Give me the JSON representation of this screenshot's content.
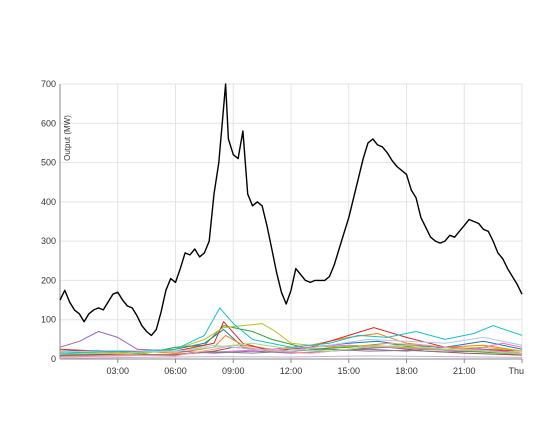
{
  "chart_data": {
    "type": "line",
    "ylabel": "Output (MW)",
    "xlabel": "",
    "ylim": [
      0,
      700
    ],
    "xlim": [
      0,
      24
    ],
    "yticks": [
      0,
      100,
      200,
      300,
      400,
      500,
      600,
      700
    ],
    "xticks": [
      {
        "x": 3,
        "label": "03:00"
      },
      {
        "x": 6,
        "label": "06:00"
      },
      {
        "x": 9,
        "label": "09:00"
      },
      {
        "x": 12,
        "label": "12:00"
      },
      {
        "x": 15,
        "label": "15:00"
      },
      {
        "x": 18,
        "label": "18:00"
      },
      {
        "x": 21,
        "label": "21:00"
      },
      {
        "x": 24,
        "label": "Thu"
      }
    ],
    "grid": true,
    "legend": "none",
    "series": [
      {
        "color": "#000000",
        "points": [
          [
            0,
            150
          ],
          [
            0.25,
            175
          ],
          [
            0.5,
            145
          ],
          [
            0.75,
            125
          ],
          [
            1.0,
            115
          ],
          [
            1.25,
            95
          ],
          [
            1.5,
            115
          ],
          [
            1.75,
            125
          ],
          [
            2.0,
            130
          ],
          [
            2.25,
            125
          ],
          [
            2.5,
            145
          ],
          [
            2.75,
            165
          ],
          [
            3.0,
            170
          ],
          [
            3.25,
            150
          ],
          [
            3.5,
            135
          ],
          [
            3.75,
            130
          ],
          [
            4.0,
            110
          ],
          [
            4.25,
            85
          ],
          [
            4.5,
            70
          ],
          [
            4.75,
            60
          ],
          [
            5.0,
            75
          ],
          [
            5.25,
            120
          ],
          [
            5.5,
            175
          ],
          [
            5.75,
            205
          ],
          [
            6.0,
            195
          ],
          [
            6.25,
            230
          ],
          [
            6.5,
            270
          ],
          [
            6.75,
            265
          ],
          [
            7.0,
            280
          ],
          [
            7.25,
            260
          ],
          [
            7.5,
            270
          ],
          [
            7.75,
            300
          ],
          [
            8.0,
            420
          ],
          [
            8.25,
            500
          ],
          [
            8.5,
            640
          ],
          [
            8.6,
            700
          ],
          [
            8.75,
            560
          ],
          [
            9.0,
            520
          ],
          [
            9.25,
            510
          ],
          [
            9.5,
            580
          ],
          [
            9.75,
            420
          ],
          [
            10.0,
            390
          ],
          [
            10.25,
            400
          ],
          [
            10.5,
            390
          ],
          [
            10.75,
            340
          ],
          [
            11.0,
            280
          ],
          [
            11.25,
            220
          ],
          [
            11.5,
            170
          ],
          [
            11.75,
            140
          ],
          [
            12.0,
            175
          ],
          [
            12.25,
            230
          ],
          [
            12.5,
            215
          ],
          [
            12.75,
            200
          ],
          [
            13.0,
            195
          ],
          [
            13.25,
            200
          ],
          [
            13.5,
            200
          ],
          [
            13.75,
            200
          ],
          [
            14.0,
            210
          ],
          [
            14.25,
            240
          ],
          [
            14.5,
            280
          ],
          [
            14.75,
            320
          ],
          [
            15.0,
            360
          ],
          [
            15.25,
            410
          ],
          [
            15.5,
            460
          ],
          [
            15.75,
            510
          ],
          [
            16.0,
            550
          ],
          [
            16.25,
            560
          ],
          [
            16.5,
            545
          ],
          [
            16.75,
            540
          ],
          [
            17.0,
            525
          ],
          [
            17.25,
            505
          ],
          [
            17.5,
            490
          ],
          [
            17.75,
            480
          ],
          [
            18.0,
            470
          ],
          [
            18.25,
            430
          ],
          [
            18.5,
            410
          ],
          [
            18.75,
            360
          ],
          [
            19.0,
            335
          ],
          [
            19.25,
            310
          ],
          [
            19.5,
            300
          ],
          [
            19.75,
            295
          ],
          [
            20.0,
            300
          ],
          [
            20.25,
            315
          ],
          [
            20.5,
            310
          ],
          [
            20.75,
            325
          ],
          [
            21.0,
            340
          ],
          [
            21.25,
            355
          ],
          [
            21.5,
            350
          ],
          [
            21.75,
            345
          ],
          [
            22.0,
            330
          ],
          [
            22.25,
            325
          ],
          [
            22.5,
            300
          ],
          [
            22.75,
            270
          ],
          [
            23.0,
            255
          ],
          [
            23.25,
            230
          ],
          [
            23.5,
            210
          ],
          [
            23.75,
            190
          ],
          [
            24.0,
            165
          ]
        ]
      },
      {
        "color": "#1f77b4",
        "points": [
          [
            0,
            20
          ],
          [
            2,
            22
          ],
          [
            4,
            15
          ],
          [
            6,
            25
          ],
          [
            7.5,
            40
          ],
          [
            8.5,
            75
          ],
          [
            9.5,
            30
          ],
          [
            11,
            20
          ],
          [
            13,
            30
          ],
          [
            15,
            40
          ],
          [
            16.5,
            45
          ],
          [
            18,
            35
          ],
          [
            20,
            30
          ],
          [
            22,
            45
          ],
          [
            24,
            25
          ]
        ]
      },
      {
        "color": "#ff7f0e",
        "points": [
          [
            0,
            10
          ],
          [
            2,
            15
          ],
          [
            4,
            20
          ],
          [
            6,
            15
          ],
          [
            8,
            30
          ],
          [
            8.6,
            60
          ],
          [
            9.5,
            35
          ],
          [
            11,
            25
          ],
          [
            13,
            35
          ],
          [
            15,
            55
          ],
          [
            16.5,
            65
          ],
          [
            18,
            40
          ],
          [
            20,
            30
          ],
          [
            22,
            35
          ],
          [
            24,
            20
          ]
        ]
      },
      {
        "color": "#2ca02c",
        "points": [
          [
            0,
            15
          ],
          [
            2,
            12
          ],
          [
            4,
            10
          ],
          [
            6,
            30
          ],
          [
            7.5,
            35
          ],
          [
            8.5,
            85
          ],
          [
            10,
            70
          ],
          [
            11,
            50
          ],
          [
            13,
            25
          ],
          [
            15,
            30
          ],
          [
            17,
            40
          ],
          [
            19,
            25
          ],
          [
            21,
            20
          ],
          [
            23,
            15
          ],
          [
            24,
            10
          ]
        ]
      },
      {
        "color": "#d62728",
        "points": [
          [
            0,
            25
          ],
          [
            2,
            20
          ],
          [
            4,
            18
          ],
          [
            6,
            20
          ],
          [
            8,
            40
          ],
          [
            8.5,
            95
          ],
          [
            9.5,
            40
          ],
          [
            11,
            20
          ],
          [
            13,
            30
          ],
          [
            15,
            60
          ],
          [
            16.3,
            80
          ],
          [
            18,
            55
          ],
          [
            20,
            30
          ],
          [
            22,
            25
          ],
          [
            24,
            20
          ]
        ]
      },
      {
        "color": "#9467bd",
        "points": [
          [
            0,
            30
          ],
          [
            1,
            45
          ],
          [
            2,
            70
          ],
          [
            3,
            55
          ],
          [
            4,
            25
          ],
          [
            6,
            20
          ],
          [
            8,
            15
          ],
          [
            10,
            20
          ],
          [
            12,
            15
          ],
          [
            14,
            20
          ],
          [
            16,
            25
          ],
          [
            18,
            20
          ],
          [
            20,
            30
          ],
          [
            22,
            25
          ],
          [
            24,
            15
          ]
        ]
      },
      {
        "color": "#8c564b",
        "points": [
          [
            0,
            10
          ],
          [
            3,
            12
          ],
          [
            6,
            10
          ],
          [
            8,
            20
          ],
          [
            9,
            30
          ],
          [
            11,
            20
          ],
          [
            13,
            15
          ],
          [
            15,
            25
          ],
          [
            17,
            30
          ],
          [
            19,
            20
          ],
          [
            21,
            15
          ],
          [
            24,
            10
          ]
        ]
      },
      {
        "color": "#e377c2",
        "points": [
          [
            0,
            5
          ],
          [
            3,
            8
          ],
          [
            5,
            10
          ],
          [
            7,
            15
          ],
          [
            9,
            20
          ],
          [
            11,
            25
          ],
          [
            13,
            30
          ],
          [
            15,
            35
          ],
          [
            17,
            30
          ],
          [
            19,
            25
          ],
          [
            21,
            20
          ],
          [
            23,
            40
          ],
          [
            24,
            30
          ]
        ]
      },
      {
        "color": "#7f7f7f",
        "points": [
          [
            0,
            8
          ],
          [
            3,
            10
          ],
          [
            6,
            12
          ],
          [
            8,
            18
          ],
          [
            10,
            15
          ],
          [
            12,
            20
          ],
          [
            14,
            25
          ],
          [
            16,
            20
          ],
          [
            18,
            22
          ],
          [
            20,
            18
          ],
          [
            22,
            20
          ],
          [
            24,
            15
          ]
        ]
      },
      {
        "color": "#bcbd22",
        "points": [
          [
            0,
            20
          ],
          [
            2,
            15
          ],
          [
            4,
            12
          ],
          [
            6,
            25
          ],
          [
            7.5,
            50
          ],
          [
            8.5,
            80
          ],
          [
            9.5,
            85
          ],
          [
            10.5,
            90
          ],
          [
            11.2,
            70
          ],
          [
            12,
            40
          ],
          [
            14,
            30
          ],
          [
            16,
            35
          ],
          [
            18,
            30
          ],
          [
            20,
            25
          ],
          [
            22,
            30
          ],
          [
            24,
            20
          ]
        ]
      },
      {
        "color": "#17becf",
        "points": [
          [
            0,
            15
          ],
          [
            2,
            18
          ],
          [
            4,
            20
          ],
          [
            6,
            25
          ],
          [
            7.5,
            60
          ],
          [
            8.3,
            130
          ],
          [
            9,
            90
          ],
          [
            10,
            50
          ],
          [
            12,
            30
          ],
          [
            14,
            40
          ],
          [
            15.5,
            60
          ],
          [
            17,
            55
          ],
          [
            18.5,
            70
          ],
          [
            20,
            50
          ],
          [
            21.5,
            65
          ],
          [
            22.5,
            85
          ],
          [
            24,
            60
          ]
        ]
      },
      {
        "color": "#ff9896",
        "points": [
          [
            0,
            5
          ],
          [
            3,
            10
          ],
          [
            6,
            8
          ],
          [
            8,
            25
          ],
          [
            9,
            35
          ],
          [
            11,
            20
          ],
          [
            13,
            15
          ],
          [
            15,
            25
          ],
          [
            17,
            40
          ],
          [
            19,
            35
          ],
          [
            21,
            25
          ],
          [
            24,
            15
          ]
        ]
      },
      {
        "color": "#98df8a",
        "points": [
          [
            0,
            12
          ],
          [
            3,
            15
          ],
          [
            6,
            20
          ],
          [
            8,
            30
          ],
          [
            10,
            40
          ],
          [
            12,
            25
          ],
          [
            14,
            20
          ],
          [
            16,
            30
          ],
          [
            18,
            35
          ],
          [
            20,
            25
          ],
          [
            22,
            20
          ],
          [
            24,
            12
          ]
        ]
      },
      {
        "color": "#aec7e8",
        "points": [
          [
            0,
            18
          ],
          [
            3,
            22
          ],
          [
            6,
            18
          ],
          [
            8,
            35
          ],
          [
            10,
            25
          ],
          [
            12,
            20
          ],
          [
            14,
            35
          ],
          [
            16,
            50
          ],
          [
            18,
            45
          ],
          [
            20,
            40
          ],
          [
            22,
            55
          ],
          [
            24,
            35
          ]
        ]
      },
      {
        "color": "#c5b0d5",
        "points": [
          [
            0,
            2
          ],
          [
            4,
            4
          ],
          [
            8,
            6
          ],
          [
            12,
            5
          ],
          [
            16,
            8
          ],
          [
            20,
            6
          ],
          [
            24,
            4
          ]
        ]
      }
    ]
  }
}
